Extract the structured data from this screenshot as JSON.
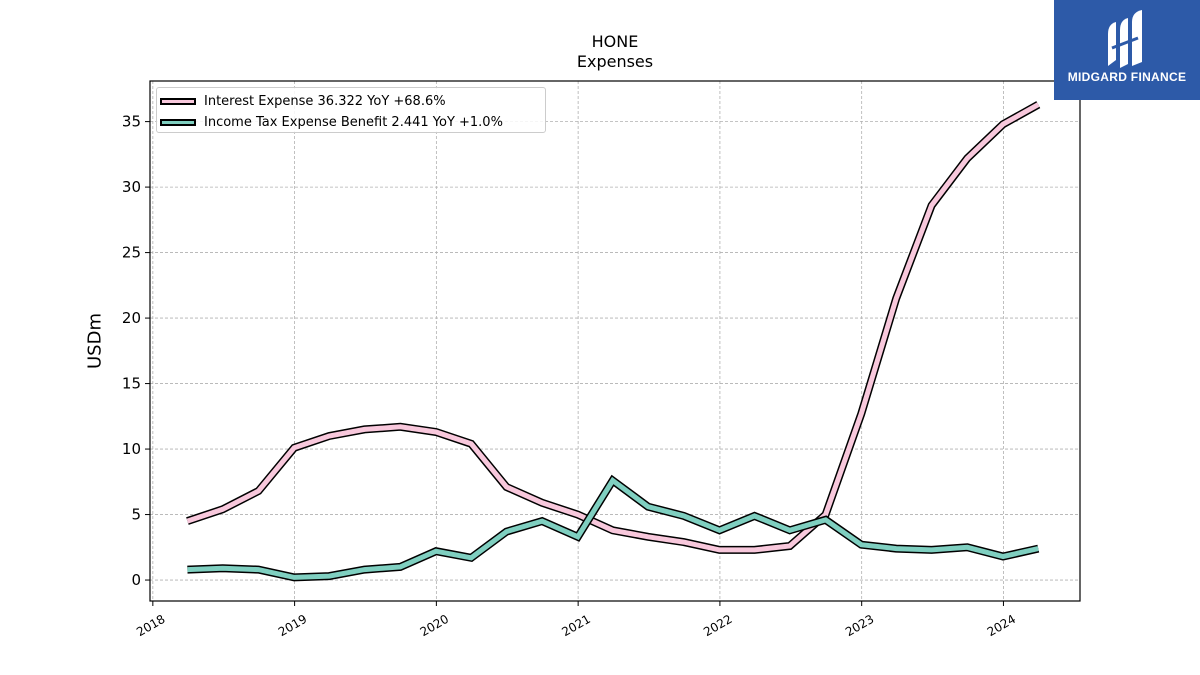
{
  "chart_data": {
    "type": "line",
    "title": "HONE",
    "subtitle": "Expenses",
    "ylabel": "USDm",
    "xlabel": "",
    "xlim": [
      2017.98,
      2024.54
    ],
    "ylim": [
      -1.6,
      38.1
    ],
    "x_ticks": [
      "2018",
      "2019",
      "2020",
      "2021",
      "2022",
      "2023",
      "2024"
    ],
    "y_ticks": [
      "0",
      "5",
      "10",
      "15",
      "20",
      "25",
      "30",
      "35"
    ],
    "grid": true,
    "legend_position": "top-left",
    "x": [
      "2018-03-31",
      "2018-06-30",
      "2018-09-30",
      "2018-12-31",
      "2019-03-31",
      "2019-06-30",
      "2019-09-30",
      "2019-12-31",
      "2020-03-31",
      "2020-06-30",
      "2020-09-30",
      "2020-12-31",
      "2021-03-31",
      "2021-06-30",
      "2021-09-30",
      "2021-12-31",
      "2022-03-31",
      "2022-06-30",
      "2022-09-30",
      "2022-12-31",
      "2023-03-31",
      "2023-06-30",
      "2023-09-30",
      "2023-12-31",
      "2024-03-31"
    ],
    "series": [
      {
        "name": "Interest Expense",
        "legend_label": "Interest Expense  36.322 YoY +68.6%",
        "color": "#f8c8dc",
        "values": [
          4.5,
          5.4,
          6.8,
          10.1,
          11.0,
          11.5,
          11.7,
          11.3,
          10.4,
          7.1,
          5.9,
          5.0,
          3.8,
          3.3,
          2.9,
          2.3,
          2.3,
          2.6,
          5.0,
          12.7,
          21.5,
          28.6,
          32.2,
          34.8,
          36.3
        ]
      },
      {
        "name": "Income Tax Expense Benefit",
        "legend_label": "Income Tax Expense Benefit  2.441 YoY +1.0%",
        "color": "#7fcfc0",
        "values": [
          0.8,
          0.9,
          0.8,
          0.2,
          0.3,
          0.8,
          1.0,
          2.2,
          1.7,
          3.7,
          4.5,
          3.3,
          7.6,
          5.6,
          4.9,
          3.8,
          4.9,
          3.8,
          4.6,
          2.7,
          2.4,
          2.3,
          2.5,
          1.8,
          2.4
        ]
      }
    ]
  },
  "logo": {
    "text": "MIDGARD FINANCE",
    "bg_color": "#2d5aa8"
  }
}
